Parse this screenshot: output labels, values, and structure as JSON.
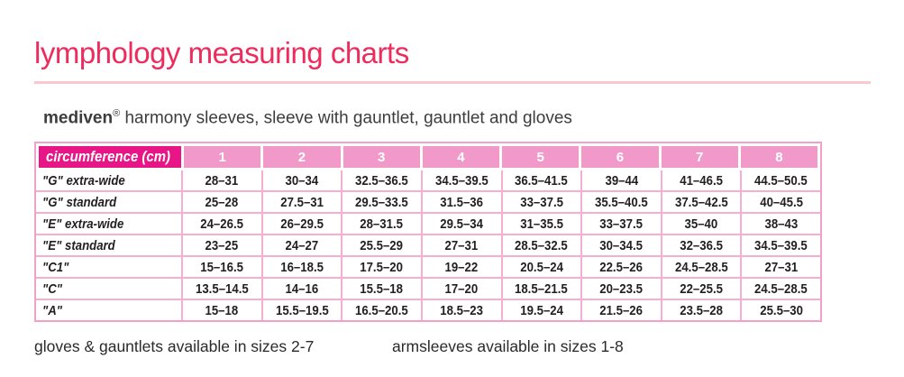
{
  "page": {
    "title": "lymphology measuring charts",
    "subtitle_brand": "mediven",
    "subtitle_reg": "®",
    "subtitle_rest": " harmony sleeves, sleeve with gauntlet, gauntlet and gloves",
    "note_left": "gloves & gauntlets available in sizes 2-7",
    "note_right": "armsleeves available in sizes 1-8"
  },
  "colors": {
    "title_pink": "#ed2b5c",
    "rule_pink": "#fac9cf",
    "header_magenta": "#e71586",
    "header_pink": "#f19aca",
    "grid_pink": "#f6aed3",
    "outer_border_pink": "#f2a0ca",
    "text_dark": "#231f20"
  },
  "chart_data": {
    "type": "table",
    "title": "lymphology measuring charts",
    "subtitle": "mediven® harmony sleeves, sleeve with gauntlet, gauntlet and gloves",
    "header_label": "circumference (cm)",
    "unit": "cm",
    "columns": [
      "1",
      "2",
      "3",
      "4",
      "5",
      "6",
      "7",
      "8"
    ],
    "rows": [
      {
        "label": "\"G\" extra-wide",
        "values": [
          "28–31",
          "30–34",
          "32.5–36.5",
          "34.5–39.5",
          "36.5–41.5",
          "39–44",
          "41–46.5",
          "44.5–50.5"
        ]
      },
      {
        "label": "\"G\" standard",
        "values": [
          "25–28",
          "27.5–31",
          "29.5–33.5",
          "31.5–36",
          "33–37.5",
          "35.5–40.5",
          "37.5–42.5",
          "40–45.5"
        ]
      },
      {
        "label": "\"E\" extra-wide",
        "values": [
          "24–26.5",
          "26–29.5",
          "28–31.5",
          "29.5–34",
          "31–35.5",
          "33–37.5",
          "35–40",
          "38–43"
        ]
      },
      {
        "label": "\"E\" standard",
        "values": [
          "23–25",
          "24–27",
          "25.5–29",
          "27–31",
          "28.5–32.5",
          "30–34.5",
          "32–36.5",
          "34.5–39.5"
        ]
      },
      {
        "label": "\"C1\"",
        "values": [
          "15–16.5",
          "16–18.5",
          "17.5–20",
          "19–22",
          "20.5–24",
          "22.5–26",
          "24.5–28.5",
          "27–31"
        ]
      },
      {
        "label": "\"C\"",
        "values": [
          "13.5–14.5",
          "14–16",
          "15.5–18",
          "17–20",
          "18.5–21.5",
          "20–23.5",
          "22–25.5",
          "24.5–28.5"
        ]
      },
      {
        "label": "\"A\"",
        "values": [
          "15–18",
          "15.5–19.5",
          "16.5–20.5",
          "18.5–23",
          "19.5–24",
          "21.5–26",
          "23.5–28",
          "25.5–30"
        ]
      }
    ]
  }
}
